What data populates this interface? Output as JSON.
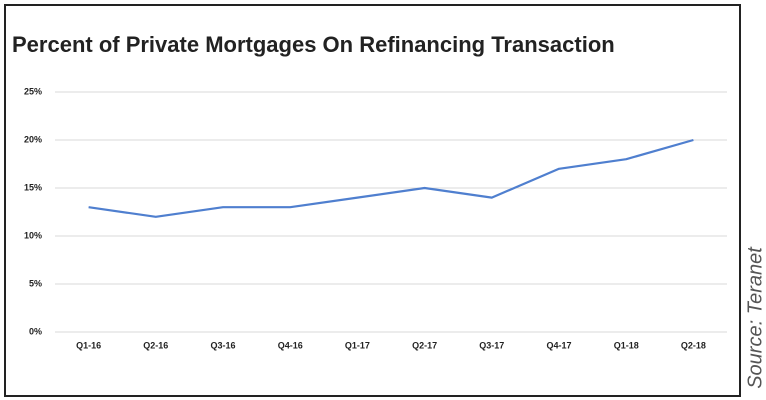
{
  "chart_data": {
    "type": "line",
    "title": "Percent of Private Mortgages On Refinancing Transaction",
    "source": "Source: Teranet",
    "categories": [
      "Q1-16",
      "Q2-16",
      "Q3-16",
      "Q4-16",
      "Q1-17",
      "Q2-17",
      "Q3-17",
      "Q4-17",
      "Q1-18",
      "Q2-18"
    ],
    "values": [
      13,
      12,
      13,
      13,
      14,
      15,
      14,
      17,
      18,
      20
    ],
    "color": "#4f7fcf",
    "ylim": [
      0,
      25
    ],
    "yticks": [
      {
        "value": 0,
        "label": "0%"
      },
      {
        "value": 5,
        "label": "5%"
      },
      {
        "value": 10,
        "label": "10%"
      },
      {
        "value": 15,
        "label": "15%"
      },
      {
        "value": 20,
        "label": "20%"
      },
      {
        "value": 25,
        "label": "25%"
      }
    ],
    "grid": true
  }
}
